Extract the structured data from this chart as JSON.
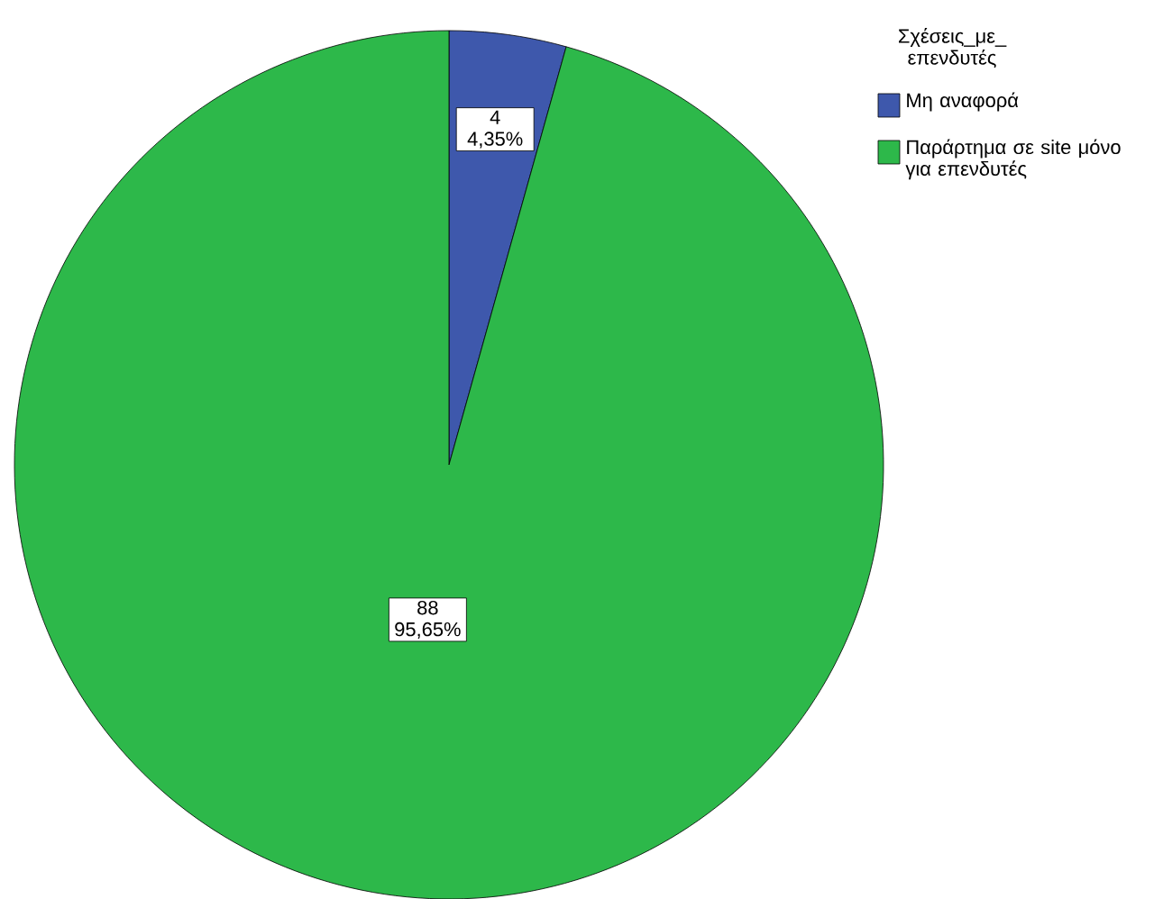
{
  "chart_data": {
    "type": "pie",
    "legend_title": "Σχέσεις_με_ επενδυτές",
    "categories": [
      "Μη αναφορά",
      "Παράρτημα σε site μόνο για επενδυτές"
    ],
    "values": [
      4,
      88
    ],
    "colors": [
      "#3e58ac",
      "#2db84a"
    ],
    "value_labels": [
      "4 4,35%",
      "88 95,65%"
    ],
    "legend": "top right"
  }
}
